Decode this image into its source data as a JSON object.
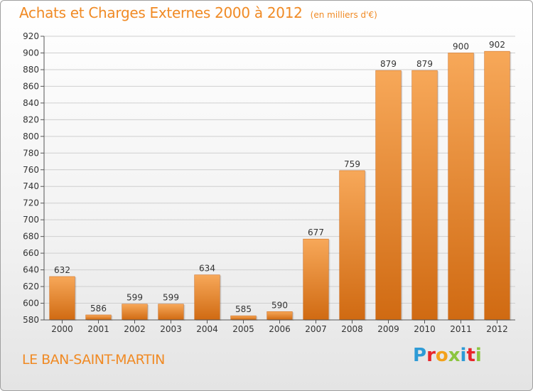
{
  "header": {
    "title": "Achats et Charges Externes 2000 à 2012",
    "subtitle": "(en milliers d'€)"
  },
  "footer": {
    "commune": "LE BAN-SAINT-MARTIN",
    "logo_letters": [
      {
        "char": "P",
        "color": "#2e9bd6"
      },
      {
        "char": "r",
        "color": "#e8262b"
      },
      {
        "char": "o",
        "color": "#f3a11b"
      },
      {
        "char": "x",
        "color": "#8bc53f"
      },
      {
        "char": "i",
        "color": "#2e9bd6"
      },
      {
        "char": "t",
        "color": "#e8262b"
      },
      {
        "char": "i",
        "color": "#8bc53f"
      }
    ]
  },
  "chart_data": {
    "type": "bar",
    "title": "Achats et Charges Externes 2000 à 2012",
    "subtitle": "(en milliers d'€)",
    "categories": [
      "2000",
      "2001",
      "2002",
      "2003",
      "2004",
      "2005",
      "2006",
      "2007",
      "2008",
      "2009",
      "2010",
      "2011",
      "2012"
    ],
    "values": [
      632,
      586,
      599,
      599,
      634,
      585,
      590,
      677,
      759,
      879,
      879,
      900,
      902
    ],
    "value_labels": [
      "632",
      "586",
      "599",
      "599",
      "634",
      "585",
      "590",
      "677",
      "759",
      "879",
      "879",
      "900",
      "902"
    ],
    "ylim": [
      580,
      920
    ],
    "yticks": [
      580,
      600,
      620,
      640,
      660,
      680,
      700,
      720,
      740,
      760,
      780,
      800,
      820,
      840,
      860,
      880,
      900,
      920
    ],
    "ytick_labels": [
      "580",
      "600",
      "620",
      "640",
      "660",
      "680",
      "700",
      "720",
      "740",
      "760",
      "780",
      "800",
      "820",
      "840",
      "860",
      "880",
      "900",
      "920"
    ],
    "grid": true,
    "bar_color_top": "#f7a859",
    "bar_color_bottom": "#d06a12",
    "xlabel": "",
    "ylabel": ""
  }
}
